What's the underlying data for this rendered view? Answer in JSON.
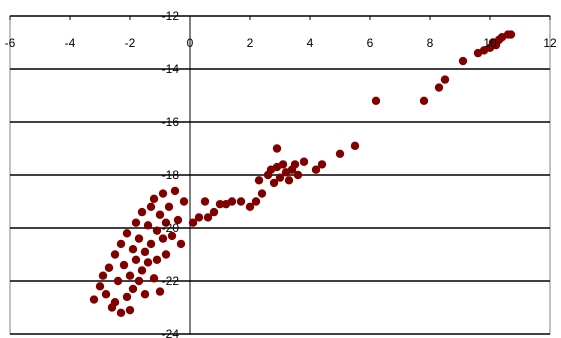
{
  "chart_data": {
    "type": "scatter",
    "title": "",
    "xlabel": "",
    "ylabel": "",
    "xlim": [
      -6,
      12
    ],
    "ylim": [
      -24,
      -12
    ],
    "x_ticks": [
      -6,
      -4,
      -2,
      0,
      2,
      4,
      6,
      8,
      10,
      12
    ],
    "y_ticks": [
      -12,
      -14,
      -16,
      -18,
      -20,
      -22,
      -24
    ],
    "x_tick_labels": [
      "-6",
      "-4",
      "-2",
      "0",
      "2",
      "4",
      "6",
      "8",
      "10",
      "12"
    ],
    "y_tick_labels": [
      "-12",
      "-14",
      "-16",
      "-18",
      "-20",
      "-22",
      "-24"
    ],
    "grid": "horizontal",
    "marker_color": "#800000",
    "series": [
      {
        "points": [
          [
            -3.2,
            -22.7
          ],
          [
            -3.0,
            -22.2
          ],
          [
            -2.9,
            -21.8
          ],
          [
            -2.8,
            -22.5
          ],
          [
            -2.7,
            -21.5
          ],
          [
            -2.6,
            -23.0
          ],
          [
            -2.5,
            -22.8
          ],
          [
            -2.5,
            -21.0
          ],
          [
            -2.4,
            -22.0
          ],
          [
            -2.3,
            -20.6
          ],
          [
            -2.3,
            -23.2
          ],
          [
            -2.2,
            -21.4
          ],
          [
            -2.1,
            -22.6
          ],
          [
            -2.1,
            -20.2
          ],
          [
            -2.0,
            -21.8
          ],
          [
            -2.0,
            -23.1
          ],
          [
            -1.9,
            -20.8
          ],
          [
            -1.9,
            -22.3
          ],
          [
            -1.8,
            -21.2
          ],
          [
            -1.8,
            -19.8
          ],
          [
            -1.7,
            -22.0
          ],
          [
            -1.7,
            -20.4
          ],
          [
            -1.6,
            -21.6
          ],
          [
            -1.6,
            -19.4
          ],
          [
            -1.5,
            -20.9
          ],
          [
            -1.5,
            -22.5
          ],
          [
            -1.4,
            -19.9
          ],
          [
            -1.4,
            -21.3
          ],
          [
            -1.3,
            -19.2
          ],
          [
            -1.3,
            -20.6
          ],
          [
            -1.2,
            -21.9
          ],
          [
            -1.2,
            -18.9
          ],
          [
            -1.1,
            -20.1
          ],
          [
            -1.1,
            -21.2
          ],
          [
            -1.0,
            -19.5
          ],
          [
            -1.0,
            -22.4
          ],
          [
            -0.9,
            -20.4
          ],
          [
            -0.9,
            -18.7
          ],
          [
            -0.8,
            -19.8
          ],
          [
            -0.8,
            -21.0
          ],
          [
            -0.7,
            -19.2
          ],
          [
            -0.6,
            -20.3
          ],
          [
            -0.5,
            -18.6
          ],
          [
            -0.4,
            -19.7
          ],
          [
            -0.3,
            -20.6
          ],
          [
            -0.2,
            -19.0
          ],
          [
            0.1,
            -19.8
          ],
          [
            0.3,
            -19.6
          ],
          [
            0.5,
            -19.0
          ],
          [
            0.6,
            -19.6
          ],
          [
            0.8,
            -19.4
          ],
          [
            1.0,
            -19.1
          ],
          [
            1.2,
            -19.1
          ],
          [
            1.4,
            -19.0
          ],
          [
            1.7,
            -19.0
          ],
          [
            2.0,
            -19.2
          ],
          [
            2.2,
            -19.0
          ],
          [
            2.3,
            -18.2
          ],
          [
            2.4,
            -18.7
          ],
          [
            2.6,
            -18.0
          ],
          [
            2.7,
            -17.8
          ],
          [
            2.8,
            -18.3
          ],
          [
            2.9,
            -17.0
          ],
          [
            2.9,
            -17.7
          ],
          [
            3.0,
            -18.1
          ],
          [
            3.1,
            -17.6
          ],
          [
            3.2,
            -17.9
          ],
          [
            3.3,
            -18.2
          ],
          [
            3.4,
            -17.8
          ],
          [
            3.5,
            -17.6
          ],
          [
            3.6,
            -18.0
          ],
          [
            3.8,
            -17.5
          ],
          [
            4.2,
            -17.8
          ],
          [
            4.4,
            -17.6
          ],
          [
            5.0,
            -17.2
          ],
          [
            5.5,
            -16.9
          ],
          [
            6.2,
            -15.2
          ],
          [
            7.8,
            -15.2
          ],
          [
            8.3,
            -14.7
          ],
          [
            8.5,
            -14.4
          ],
          [
            9.1,
            -13.7
          ],
          [
            9.6,
            -13.4
          ],
          [
            9.8,
            -13.3
          ],
          [
            10.0,
            -13.2
          ],
          [
            10.1,
            -13.0
          ],
          [
            10.2,
            -13.1
          ],
          [
            10.3,
            -12.9
          ],
          [
            10.4,
            -12.8
          ],
          [
            10.6,
            -12.7
          ],
          [
            10.7,
            -12.7
          ]
        ]
      }
    ]
  }
}
